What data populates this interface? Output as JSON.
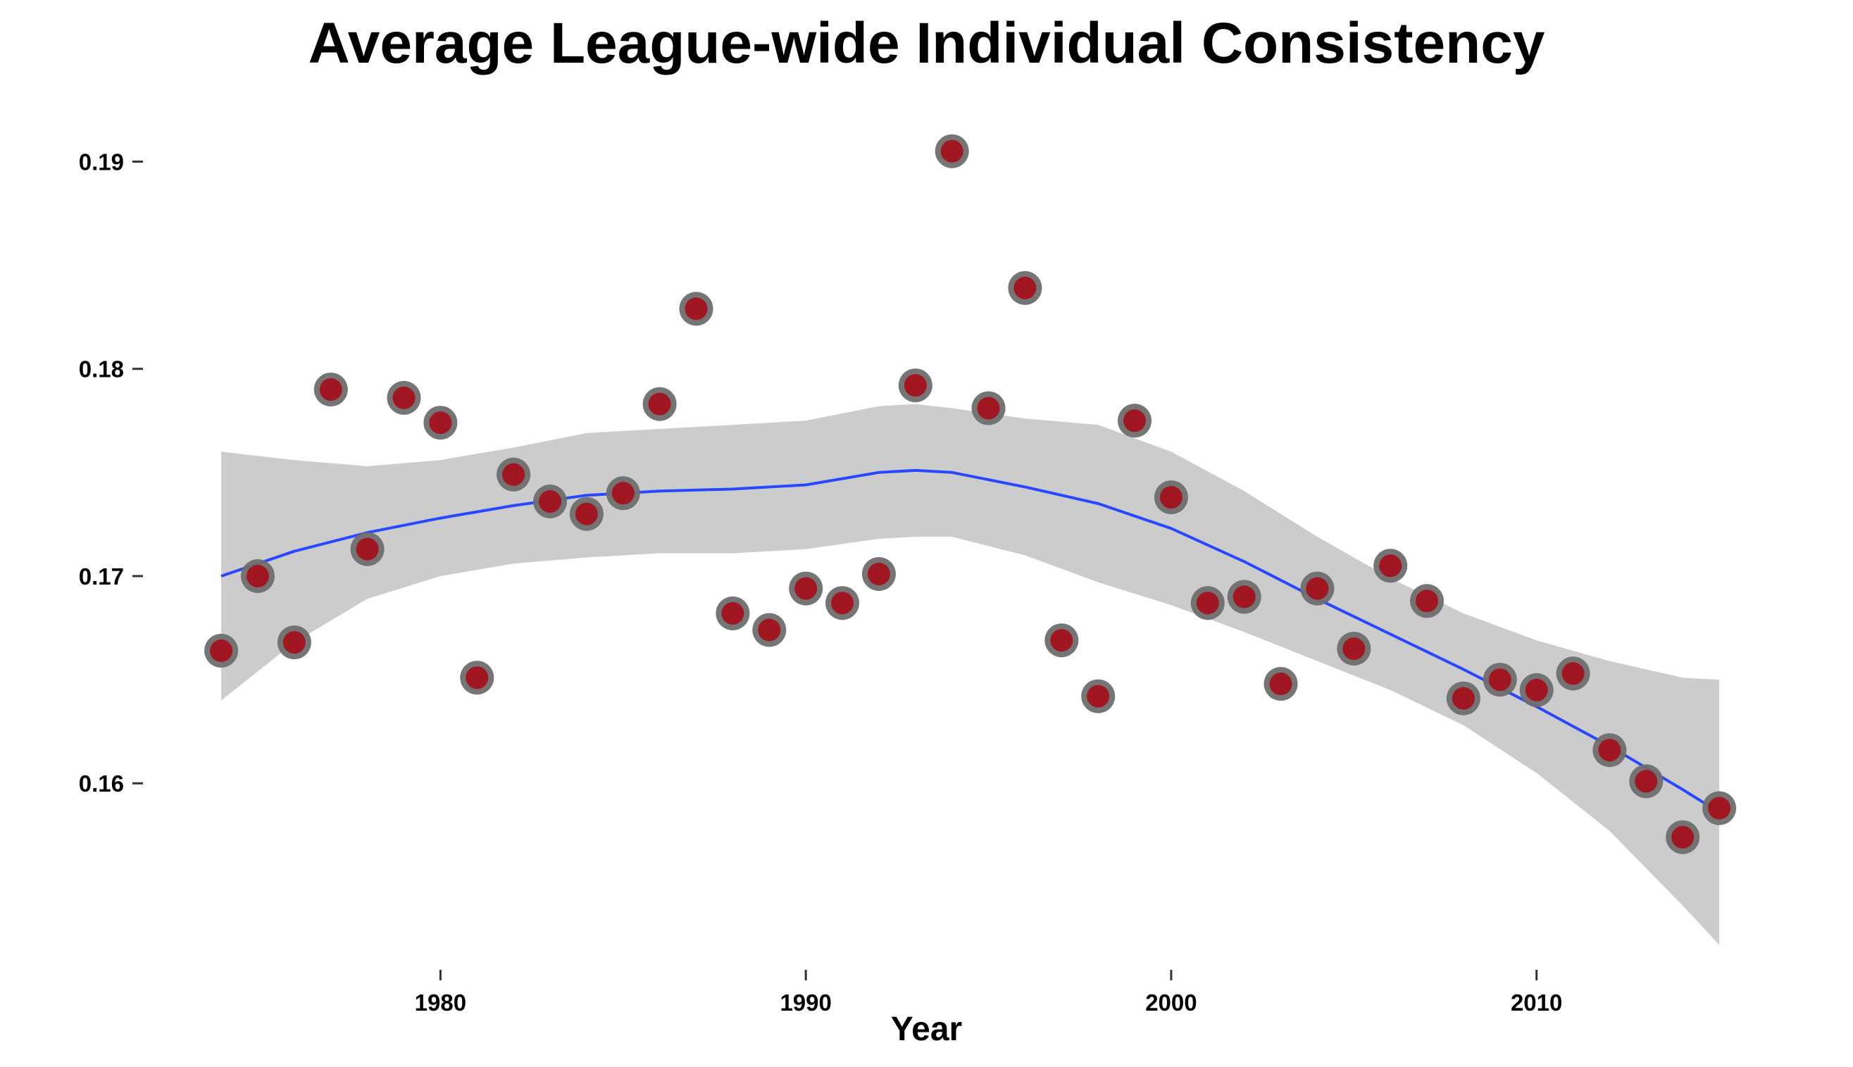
{
  "chart_data": {
    "type": "scatter",
    "title": "Average League-wide Individual Consistency",
    "xlabel": "Year",
    "ylabel": "",
    "xlim": [
      1971.8,
      2017.1
    ],
    "ylim": [
      0.1509,
      0.1927
    ],
    "x_ticks": [
      1980,
      1990,
      2000,
      2010
    ],
    "x_tick_labels": [
      "1980",
      "1990",
      "2000",
      "2010"
    ],
    "y_ticks": [
      0.16,
      0.17,
      0.18,
      0.19
    ],
    "y_tick_labels": [
      "0.16",
      "0.17",
      "0.18",
      "0.19"
    ],
    "grid": false,
    "legend": "none",
    "series": [
      {
        "type": "scatter",
        "x": [
          1974,
          1975,
          1976,
          1977,
          1978,
          1979,
          1980,
          1981,
          1982,
          1983,
          1984,
          1985,
          1986,
          1987,
          1988,
          1989,
          1990,
          1991,
          1992,
          1993,
          1994,
          1995,
          1996,
          1997,
          1998,
          1999,
          2000,
          2001,
          2002,
          2003,
          2004,
          2005,
          2006,
          2007,
          2008,
          2009,
          2010,
          2011,
          2012,
          2013,
          2014,
          2015
        ],
        "y": [
          0.1664,
          0.17,
          0.1668,
          0.179,
          0.1713,
          0.1786,
          0.1774,
          0.1651,
          0.1749,
          0.1736,
          0.173,
          0.174,
          0.1783,
          0.1829,
          0.1682,
          0.1674,
          0.1694,
          0.1687,
          0.1701,
          0.1792,
          0.1905,
          0.1781,
          0.1839,
          0.1669,
          0.1642,
          0.1775,
          0.1738,
          0.1687,
          0.169,
          0.1648,
          0.1694,
          0.1665,
          0.1705,
          0.1688,
          0.1641,
          0.165,
          0.1645,
          0.1653,
          0.1616,
          0.1601,
          0.1574,
          0.1588
        ]
      },
      {
        "type": "line",
        "name": "",
        "x": [
          1974,
          1976,
          1978,
          1980,
          1982,
          1984,
          1986,
          1988,
          1990,
          1992,
          1993,
          1994,
          1996,
          1998,
          2000,
          2002,
          2004,
          2006,
          2008,
          2010,
          2012,
          2014,
          2015
        ],
        "y": [
          0.17,
          0.1712,
          0.1721,
          0.1728,
          0.1734,
          0.1739,
          0.1741,
          0.1742,
          0.1744,
          0.175,
          0.1751,
          0.175,
          0.1743,
          0.1735,
          0.1723,
          0.1707,
          0.1689,
          0.1672,
          0.1655,
          0.1637,
          0.1618,
          0.1597,
          0.1586
        ],
        "ci_lower": [
          0.164,
          0.1668,
          0.1689,
          0.17,
          0.1706,
          0.1709,
          0.1711,
          0.1711,
          0.1713,
          0.1718,
          0.1719,
          0.1719,
          0.171,
          0.1697,
          0.1686,
          0.1673,
          0.1659,
          0.1645,
          0.1628,
          0.1605,
          0.1577,
          0.1541,
          0.1522
        ],
        "ci_upper": [
          0.176,
          0.1756,
          0.1753,
          0.1756,
          0.1762,
          0.1769,
          0.1771,
          0.1773,
          0.1775,
          0.1782,
          0.1783,
          0.1781,
          0.1776,
          0.1773,
          0.176,
          0.1741,
          0.1719,
          0.1699,
          0.1682,
          0.1669,
          0.1659,
          0.1651,
          0.165
        ]
      }
    ],
    "colors": {
      "point_fill": "#a50c18",
      "point_outline": "#6e6e6e",
      "smooth_line": "#2847ff",
      "confidence_band": "#cccccc",
      "axis_tick": "#333333",
      "text": "#000000"
    }
  }
}
